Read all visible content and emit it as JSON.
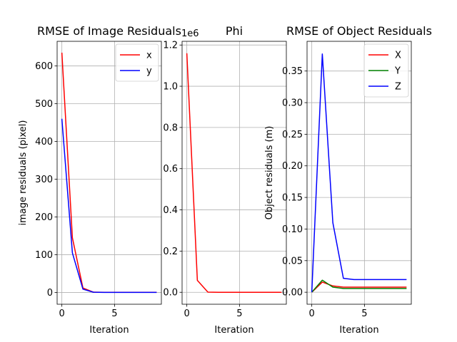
{
  "chart_data": [
    {
      "type": "line",
      "title": "RMSE of Image Residuals",
      "xlabel": "Iteration",
      "ylabel": "image residuals (pixel)",
      "xlim": [
        -0.45,
        9.45
      ],
      "ylim": [
        -31,
        665
      ],
      "xticks": [
        0,
        5
      ],
      "yticks": [
        0,
        100,
        200,
        300,
        400,
        500,
        600
      ],
      "grid": true,
      "legend_placement": "upper-right",
      "x": [
        0,
        1,
        2,
        3,
        4,
        5,
        6,
        7,
        8,
        9
      ],
      "series": [
        {
          "name": "x",
          "color": "#ff0000",
          "values": [
            635,
            145,
            12,
            1,
            0.5,
            0.5,
            0.5,
            0.5,
            0.5,
            0.5
          ]
        },
        {
          "name": "y",
          "color": "#0000ff",
          "values": [
            460,
            105,
            9,
            0.8,
            0.4,
            0.4,
            0.4,
            0.4,
            0.4,
            0.4
          ]
        }
      ]
    },
    {
      "type": "line",
      "title": "Phi",
      "xlabel": "Iteration",
      "ylabel": "",
      "offset_text": "1e6",
      "xlim": [
        -0.45,
        9.45
      ],
      "ylim": [
        -0.058,
        1.218
      ],
      "xticks": [
        0,
        5
      ],
      "yticks": [
        0.0,
        0.2,
        0.4,
        0.6,
        0.8,
        1.0,
        1.2
      ],
      "ytick_labels": [
        "0.0",
        "0.2",
        "0.4",
        "0.6",
        "0.8",
        "1.0",
        "1.2"
      ],
      "grid": true,
      "x": [
        0,
        1,
        2,
        3,
        4,
        5,
        6,
        7,
        8,
        9
      ],
      "series": [
        {
          "color": "#ff0000",
          "values": [
            1.16,
            0.058,
            0.001,
            0.0,
            0.0,
            0.0,
            0.0,
            0.0,
            0.0,
            0.0
          ]
        }
      ]
    },
    {
      "type": "line",
      "title": "RMSE of Object Residuals",
      "xlabel": "Iteration",
      "ylabel": "Object residuals (m)",
      "xlim": [
        -0.45,
        9.45
      ],
      "ylim": [
        -0.019,
        0.397
      ],
      "xticks": [
        0,
        5
      ],
      "yticks": [
        0.0,
        0.05,
        0.1,
        0.15,
        0.2,
        0.25,
        0.3,
        0.35
      ],
      "ytick_labels": [
        "0.00",
        "0.05",
        "0.10",
        "0.15",
        "0.20",
        "0.25",
        "0.30",
        "0.35"
      ],
      "grid": true,
      "legend_placement": "upper-right",
      "x": [
        0,
        1,
        2,
        3,
        4,
        5,
        6,
        7,
        8,
        9
      ],
      "series": [
        {
          "name": "X",
          "color": "#ff0000",
          "values": [
            0.0,
            0.016,
            0.01,
            0.008,
            0.008,
            0.008,
            0.008,
            0.008,
            0.008,
            0.008
          ]
        },
        {
          "name": "Y",
          "color": "#008000",
          "values": [
            0.0,
            0.019,
            0.008,
            0.006,
            0.006,
            0.006,
            0.006,
            0.006,
            0.006,
            0.006
          ]
        },
        {
          "name": "Z",
          "color": "#0000ff",
          "values": [
            0.0,
            0.377,
            0.11,
            0.022,
            0.02,
            0.02,
            0.02,
            0.02,
            0.02,
            0.02
          ]
        }
      ]
    }
  ]
}
